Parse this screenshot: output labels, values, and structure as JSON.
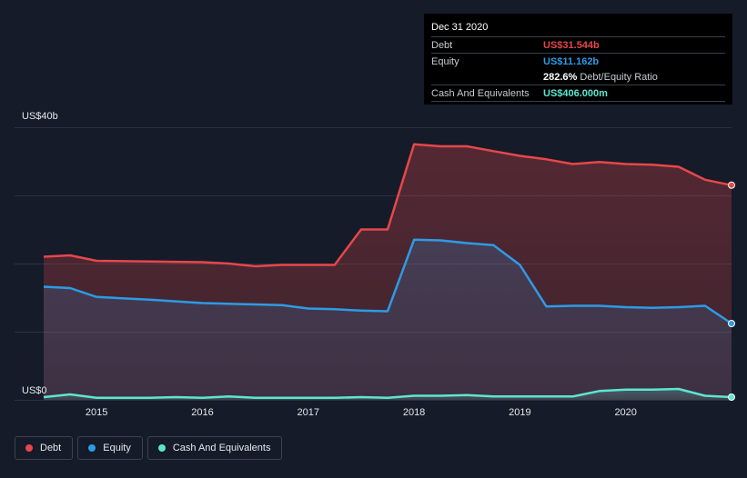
{
  "colors": {
    "debt": "#e6474b",
    "equity": "#2d9be6",
    "cash": "#5ce6d0",
    "grid": "#2b3140",
    "axis_text": "#e6e8ec"
  },
  "tooltip": {
    "date": "Dec 31 2020",
    "debt_label": "Debt",
    "debt_value": "US$31.544b",
    "equity_label": "Equity",
    "equity_value": "US$11.162b",
    "ratio_value": "282.6%",
    "ratio_label": "Debt/Equity Ratio",
    "cash_label": "Cash And Equivalents",
    "cash_value": "US$406.000m"
  },
  "legend": {
    "debt": "Debt",
    "equity": "Equity",
    "cash": "Cash And Equivalents"
  },
  "chart_data": {
    "type": "area",
    "title": "",
    "xlabel": "",
    "ylabel": "",
    "xlim": [
      2014.5,
      2021.0
    ],
    "ylim": [
      0,
      40
    ],
    "y_tick_labels": [
      {
        "value": 40,
        "label": "US$40b"
      },
      {
        "value": 0,
        "label": "US$0"
      }
    ],
    "gridlines": [
      0,
      10,
      20,
      30,
      40
    ],
    "x_ticks": [
      {
        "value": 2015,
        "label": "2015"
      },
      {
        "value": 2016,
        "label": "2016"
      },
      {
        "value": 2017,
        "label": "2017"
      },
      {
        "value": 2018,
        "label": "2018"
      },
      {
        "value": 2019,
        "label": "2019"
      },
      {
        "value": 2020,
        "label": "2020"
      }
    ],
    "series": [
      {
        "name": "Debt",
        "key": "debt",
        "points": [
          [
            2014.5,
            21.0
          ],
          [
            2014.75,
            21.2
          ],
          [
            2015.0,
            20.4
          ],
          [
            2015.5,
            20.3
          ],
          [
            2016.0,
            20.2
          ],
          [
            2016.25,
            20.0
          ],
          [
            2016.5,
            19.6
          ],
          [
            2016.75,
            19.8
          ],
          [
            2017.0,
            19.8
          ],
          [
            2017.25,
            19.8
          ],
          [
            2017.5,
            25.0
          ],
          [
            2017.75,
            25.0
          ],
          [
            2018.0,
            37.5
          ],
          [
            2018.25,
            37.2
          ],
          [
            2018.5,
            37.2
          ],
          [
            2018.75,
            36.5
          ],
          [
            2019.0,
            35.8
          ],
          [
            2019.25,
            35.3
          ],
          [
            2019.5,
            34.6
          ],
          [
            2019.75,
            34.9
          ],
          [
            2020.0,
            34.6
          ],
          [
            2020.25,
            34.5
          ],
          [
            2020.5,
            34.2
          ],
          [
            2020.75,
            32.3
          ],
          [
            2021.0,
            31.5
          ]
        ]
      },
      {
        "name": "Equity",
        "key": "equity",
        "points": [
          [
            2014.5,
            16.6
          ],
          [
            2014.75,
            16.4
          ],
          [
            2015.0,
            15.1
          ],
          [
            2015.5,
            14.7
          ],
          [
            2016.0,
            14.2
          ],
          [
            2016.5,
            14.0
          ],
          [
            2016.75,
            13.9
          ],
          [
            2017.0,
            13.4
          ],
          [
            2017.25,
            13.3
          ],
          [
            2017.5,
            13.1
          ],
          [
            2017.75,
            13.0
          ],
          [
            2018.0,
            23.5
          ],
          [
            2018.25,
            23.4
          ],
          [
            2018.5,
            23.0
          ],
          [
            2018.75,
            22.7
          ],
          [
            2019.0,
            19.8
          ],
          [
            2019.25,
            13.7
          ],
          [
            2019.5,
            13.8
          ],
          [
            2019.75,
            13.8
          ],
          [
            2020.0,
            13.6
          ],
          [
            2020.25,
            13.5
          ],
          [
            2020.5,
            13.6
          ],
          [
            2020.75,
            13.8
          ],
          [
            2021.0,
            11.2
          ]
        ]
      },
      {
        "name": "Cash And Equivalents",
        "key": "cash",
        "points": [
          [
            2014.5,
            0.4
          ],
          [
            2014.75,
            0.8
          ],
          [
            2015.0,
            0.3
          ],
          [
            2015.5,
            0.3
          ],
          [
            2015.75,
            0.4
          ],
          [
            2016.0,
            0.3
          ],
          [
            2016.25,
            0.5
          ],
          [
            2016.5,
            0.3
          ],
          [
            2017.0,
            0.3
          ],
          [
            2017.25,
            0.3
          ],
          [
            2017.5,
            0.4
          ],
          [
            2017.75,
            0.3
          ],
          [
            2018.0,
            0.6
          ],
          [
            2018.25,
            0.6
          ],
          [
            2018.5,
            0.7
          ],
          [
            2018.75,
            0.5
          ],
          [
            2019.0,
            0.5
          ],
          [
            2019.5,
            0.5
          ],
          [
            2019.75,
            1.3
          ],
          [
            2020.0,
            1.5
          ],
          [
            2020.25,
            1.5
          ],
          [
            2020.5,
            1.6
          ],
          [
            2020.75,
            0.6
          ],
          [
            2021.0,
            0.4
          ]
        ]
      }
    ]
  }
}
